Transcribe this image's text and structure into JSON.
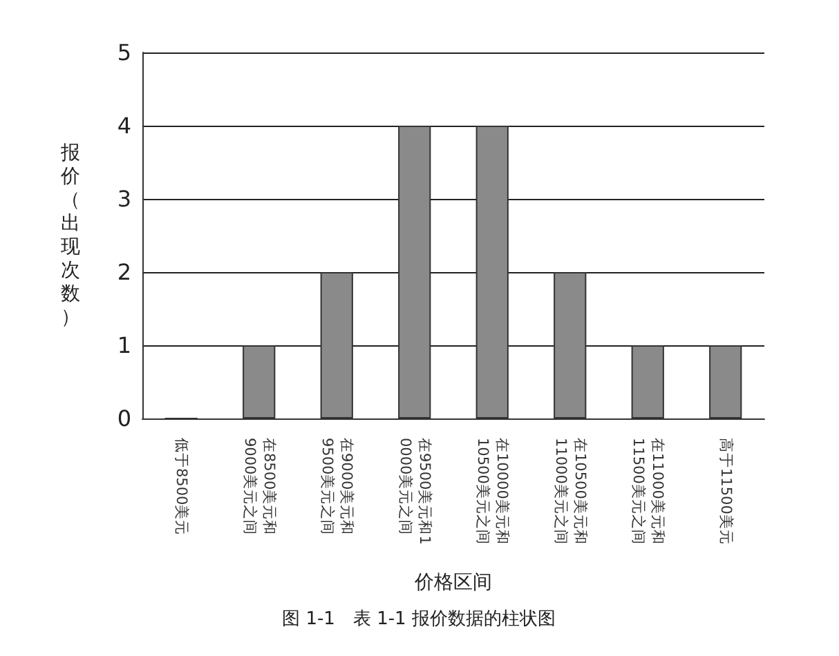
{
  "chart_data": {
    "type": "bar",
    "xlabel": "价格区间",
    "ylabel": "报价（出现次数）",
    "annotations": [
      "图 1-1　表 1-1 报价数据的柱状图"
    ],
    "categories": [
      "低于8500美元",
      "在8500美元和9000美元之间",
      "在9000美元和9500美元之间",
      "在9500美元和10000美元之间",
      "在10000美元和10500美元之间",
      "在10500美元和11000美元之间",
      "在11000美元和11500美元之间",
      "高于11500美元"
    ],
    "values": [
      0,
      1,
      2,
      4,
      4,
      2,
      1,
      1
    ],
    "color": "#8a8a8a",
    "ylim": [
      0,
      5
    ],
    "yticks": [
      0,
      1,
      2,
      3,
      4,
      5
    ],
    "grid": "y"
  }
}
